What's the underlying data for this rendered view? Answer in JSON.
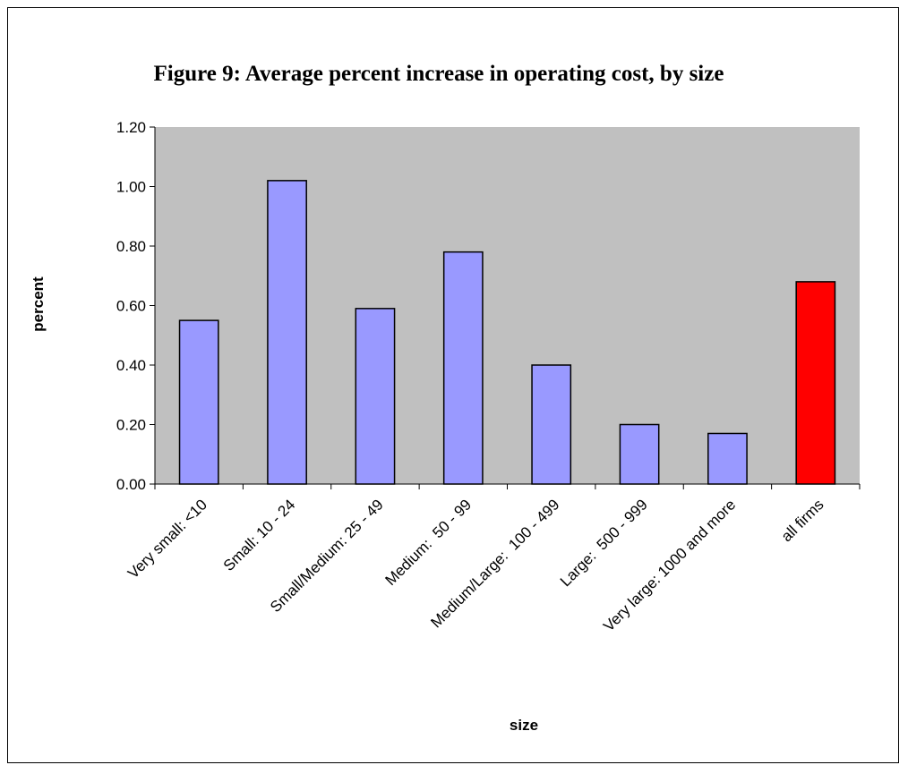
{
  "chart_data": {
    "type": "bar",
    "title": "Figure 9: Average percent increase in operating cost, by size",
    "x_label": "size",
    "y_label": "percent",
    "categories": [
      "Very small: <10",
      "Small: 10 - 24",
      "Small/Medium: 25 - 49",
      "Medium:  50 - 99",
      "Medium/Large:  100 - 499",
      "Large:  500 - 999",
      "Very large: 1000 and more",
      "all firms"
    ],
    "values": [
      0.55,
      1.02,
      0.59,
      0.78,
      0.4,
      0.2,
      0.17,
      0.68
    ],
    "colors": [
      "#9999ff",
      "#9999ff",
      "#9999ff",
      "#9999ff",
      "#9999ff",
      "#9999ff",
      "#9999ff",
      "#ff0000"
    ],
    "plot_background": "#c0c0c0",
    "ylim": [
      0,
      1.2
    ],
    "yticks": [
      {
        "value": 0,
        "label": "0.00"
      },
      {
        "value": 0.2,
        "label": "0.20"
      },
      {
        "value": 0.4,
        "label": "0.40"
      },
      {
        "value": 0.6,
        "label": "0.60"
      },
      {
        "value": 0.8,
        "label": "0.80"
      },
      {
        "value": 1.0,
        "label": "1.00"
      },
      {
        "value": 1.2,
        "label": "1.20"
      }
    ]
  }
}
